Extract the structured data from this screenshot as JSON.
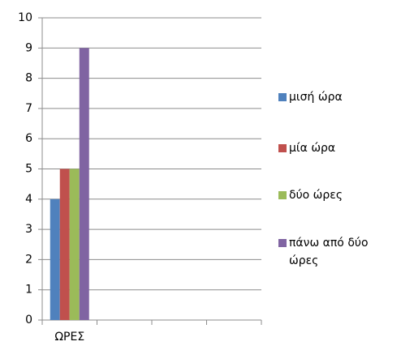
{
  "chart_data": {
    "type": "bar",
    "categories": [
      "ΩΡΕΣ",
      null,
      null,
      null
    ],
    "series": [
      {
        "name": "μισή ώρα",
        "color": "#4f81bd",
        "values": [
          4,
          null,
          null,
          null
        ]
      },
      {
        "name": "μία ώρα",
        "color": "#c0504d",
        "values": [
          5,
          null,
          null,
          null
        ]
      },
      {
        "name": "δύο ώρες",
        "color": "#9bbb59",
        "values": [
          5,
          null,
          null,
          null
        ]
      },
      {
        "name": "πάνω από δύο ώρες",
        "color": "#8064a2",
        "values": [
          9,
          null,
          null,
          null
        ]
      }
    ],
    "ylim": [
      0,
      10
    ],
    "yticks": [
      0,
      1,
      2,
      3,
      4,
      5,
      6,
      7,
      8,
      9,
      10
    ],
    "grid": true,
    "legend": "right"
  }
}
